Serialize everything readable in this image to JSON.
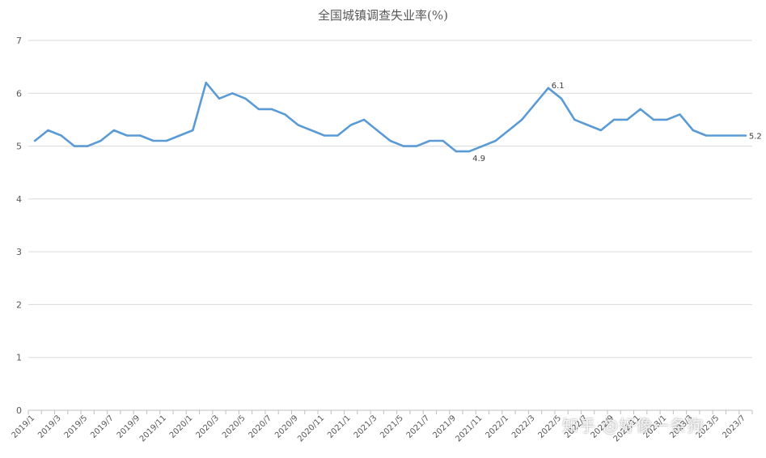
{
  "chart_data": {
    "type": "line",
    "title": "全国城镇调查失业率(%)",
    "xlabel": "",
    "ylabel": "",
    "ylim": [
      0,
      7
    ],
    "yticks": [
      0,
      1,
      2,
      3,
      4,
      5,
      6,
      7
    ],
    "grid": true,
    "legend": "none",
    "x": [
      "2019/1",
      "2019/2",
      "2019/3",
      "2019/4",
      "2019/5",
      "2019/6",
      "2019/7",
      "2019/8",
      "2019/9",
      "2019/10",
      "2019/11",
      "2019/12",
      "2020/1",
      "2020/2",
      "2020/3",
      "2020/4",
      "2020/5",
      "2020/6",
      "2020/7",
      "2020/8",
      "2020/9",
      "2020/10",
      "2020/11",
      "2020/12",
      "2021/1",
      "2021/2",
      "2021/3",
      "2021/4",
      "2021/5",
      "2021/6",
      "2021/7",
      "2021/8",
      "2021/9",
      "2021/10",
      "2021/11",
      "2021/12",
      "2022/1",
      "2022/2",
      "2022/3",
      "2022/4",
      "2022/5",
      "2022/6",
      "2022/7",
      "2022/8",
      "2022/9",
      "2022/10",
      "2022/11",
      "2022/12",
      "2023/1",
      "2023/2",
      "2023/3",
      "2023/4",
      "2023/5",
      "2023/6",
      "2023/7"
    ],
    "x_tick_labels": [
      "2019/1",
      "2019/3",
      "2019/5",
      "2019/7",
      "2019/9",
      "2019/11",
      "2020/1",
      "2020/3",
      "2020/5",
      "2020/7",
      "2020/9",
      "2020/11",
      "2021/1",
      "2021/3",
      "2021/5",
      "2021/7",
      "2021/9",
      "2021/11",
      "2022/1",
      "2022/3",
      "2022/5",
      "2022/7",
      "2022/9",
      "2022/11",
      "2023/1",
      "2023/3",
      "2023/5",
      "2023/7"
    ],
    "series": [
      {
        "values": [
          5.1,
          5.3,
          5.2,
          5.0,
          5.0,
          5.1,
          5.3,
          5.2,
          5.2,
          5.1,
          5.1,
          5.2,
          5.3,
          6.2,
          5.9,
          6.0,
          5.9,
          5.7,
          5.7,
          5.6,
          5.4,
          5.3,
          5.2,
          5.2,
          5.4,
          5.5,
          5.3,
          5.1,
          5.0,
          5.0,
          5.1,
          5.1,
          4.9,
          4.9,
          5.0,
          5.1,
          5.3,
          5.5,
          5.8,
          6.1,
          5.9,
          5.5,
          5.4,
          5.3,
          5.5,
          5.5,
          5.7,
          5.5,
          5.5,
          5.6,
          5.3,
          5.2,
          5.2,
          5.2,
          5.2
        ]
      }
    ],
    "data_labels": [
      {
        "index": 33,
        "text": "4.9"
      },
      {
        "index": 39,
        "text": "6.1"
      },
      {
        "index": 54,
        "text": "5.2"
      }
    ],
    "line_color": "#5b9bd5",
    "grid_color": "#d9d9d9"
  },
  "watermark": "知乎 @好像一条狗"
}
